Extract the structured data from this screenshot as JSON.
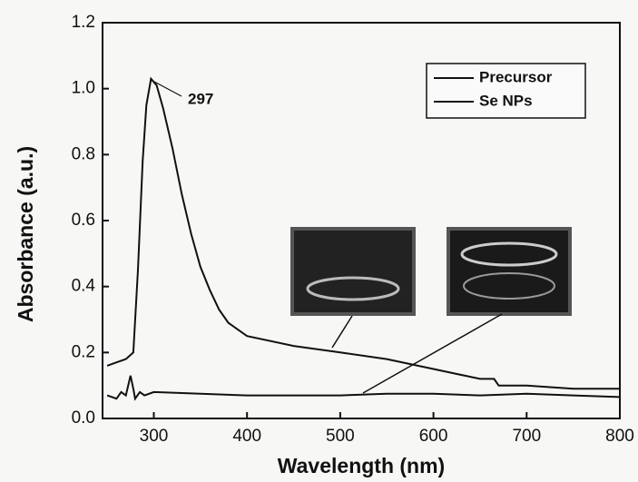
{
  "chart_data": {
    "type": "line",
    "x_label": "Wavelength (nm)",
    "y_label": "Absorbance (a.u.)",
    "xlim": [
      245,
      800
    ],
    "ylim": [
      0,
      1.2
    ],
    "xticks": [
      300,
      400,
      500,
      600,
      700,
      800
    ],
    "yticks": [
      {
        "value": 0,
        "label": "0.0"
      },
      0.2,
      0.4,
      0.6,
      0.8,
      {
        "value": 1,
        "label": "1.0"
      },
      1.2
    ],
    "annotations": [
      "297"
    ],
    "series": [
      {
        "name": "Precursor",
        "color": "#111111",
        "x": [
          250,
          260,
          265,
          270,
          275,
          278,
          280,
          285,
          290,
          300,
          350,
          400,
          450,
          500,
          550,
          600,
          650,
          700,
          750,
          800
        ],
        "values": [
          0.07,
          0.06,
          0.08,
          0.07,
          0.13,
          0.09,
          0.06,
          0.08,
          0.07,
          0.08,
          0.075,
          0.07,
          0.07,
          0.07,
          0.075,
          0.075,
          0.07,
          0.075,
          0.07,
          0.065
        ]
      },
      {
        "name": "Se NPs",
        "color": "#111111",
        "x": [
          250,
          260,
          270,
          278,
          283,
          288,
          292,
          297,
          303,
          310,
          320,
          330,
          340,
          350,
          360,
          370,
          380,
          390,
          400,
          450,
          500,
          550,
          600,
          650,
          665,
          670,
          700,
          750,
          800
        ],
        "values": [
          0.16,
          0.17,
          0.18,
          0.2,
          0.45,
          0.78,
          0.95,
          1.03,
          1.01,
          0.94,
          0.82,
          0.68,
          0.56,
          0.46,
          0.39,
          0.33,
          0.29,
          0.27,
          0.25,
          0.22,
          0.2,
          0.18,
          0.15,
          0.12,
          0.12,
          0.1,
          0.1,
          0.09,
          0.09
        ]
      }
    ],
    "legend": "upper right",
    "grid": false
  }
}
